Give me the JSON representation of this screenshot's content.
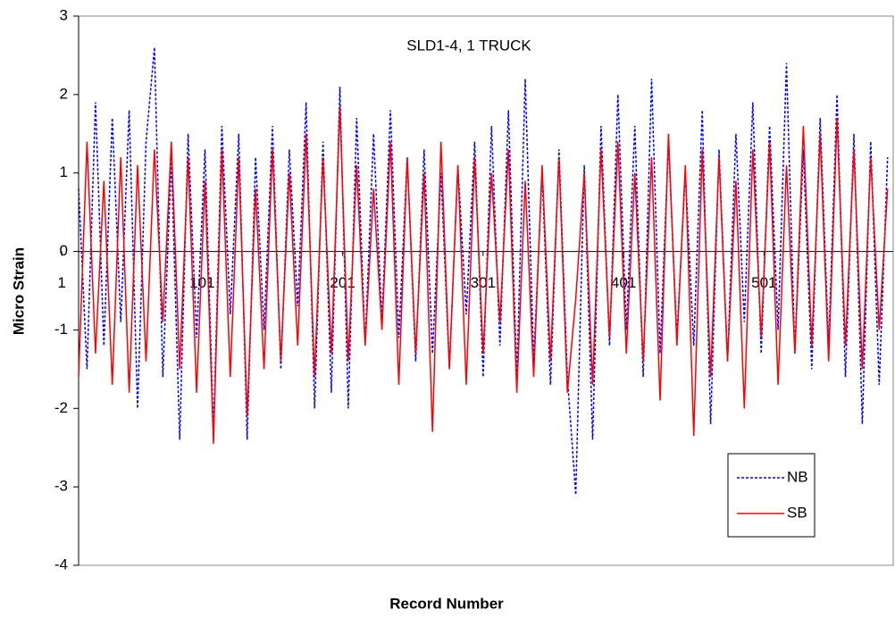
{
  "chart_data": {
    "type": "line",
    "title": "SLD1-4, 1 TRUCK",
    "x_label": "Record Number",
    "y_label": "Micro Strain",
    "x": [
      13,
      19,
      25,
      31,
      37,
      43,
      49,
      55,
      61,
      67,
      73,
      79,
      85,
      91,
      97,
      103,
      109,
      115,
      121,
      127,
      133,
      139,
      145,
      151,
      157,
      163,
      169,
      175,
      181,
      187,
      193,
      199,
      205,
      211,
      217,
      223,
      229,
      235,
      241,
      247,
      253,
      259,
      265,
      271,
      277,
      283,
      289,
      295,
      301,
      307,
      313,
      319,
      325,
      331,
      337,
      343,
      349,
      355,
      361,
      367,
      373,
      379,
      385,
      391,
      397,
      403,
      409,
      415,
      421,
      427,
      433,
      439,
      445,
      451,
      457,
      463,
      469,
      475,
      481,
      487,
      493,
      499,
      505,
      511,
      517,
      523,
      529,
      535,
      541,
      547,
      553,
      559,
      565,
      571,
      577,
      583,
      589
    ],
    "series": [
      {
        "name": "NB",
        "color": "#0000ff",
        "dash": "3,2",
        "values": [
          0.8,
          -1.5,
          1.9,
          -1.2,
          1.7,
          -0.9,
          1.8,
          -2.0,
          1.4,
          2.6,
          -1.6,
          1.2,
          -2.4,
          1.5,
          -1.1,
          1.3,
          -2.3,
          1.6,
          -0.8,
          1.5,
          -2.4,
          1.2,
          -1.0,
          1.6,
          -1.5,
          1.3,
          -0.7,
          1.9,
          -2.0,
          1.4,
          -1.8,
          2.1,
          -2.0,
          1.7,
          -1.2,
          1.5,
          -0.9,
          1.8,
          -1.1,
          1.2,
          -1.4,
          1.3,
          -1.3,
          1.0,
          -1.5,
          1.1,
          -0.8,
          1.4,
          -1.6,
          1.6,
          -1.2,
          1.8,
          -1.6,
          2.2,
          -1.4,
          1.0,
          -1.7,
          1.3,
          -1.6,
          -3.1,
          1.1,
          -2.4,
          1.6,
          -1.2,
          2.0,
          -1.0,
          1.6,
          -1.6,
          2.2,
          -1.3,
          1.4,
          -1.1,
          1.0,
          -1.2,
          1.8,
          -2.2,
          1.3,
          -1.4,
          1.5,
          -0.9,
          1.9,
          -1.3,
          1.6,
          -1.0,
          2.4,
          -1.3,
          1.3,
          -1.5,
          1.7,
          -1.2,
          2.0,
          -1.6,
          1.5,
          -2.2,
          1.4,
          -1.7,
          1.2
        ]
      },
      {
        "name": "SB",
        "color": "#ff0000",
        "dash": "",
        "values": [
          -1.6,
          1.4,
          -1.3,
          0.9,
          -1.7,
          1.2,
          -1.8,
          1.1,
          -1.4,
          1.3,
          -0.9,
          1.4,
          -1.5,
          1.2,
          -1.8,
          0.9,
          -2.45,
          1.3,
          -1.6,
          1.2,
          -2.1,
          0.8,
          -1.5,
          1.3,
          -1.4,
          1.0,
          -1.2,
          1.5,
          -1.6,
          1.2,
          -1.3,
          1.85,
          -1.4,
          1.1,
          -1.2,
          0.8,
          -1.0,
          1.4,
          -1.7,
          1.2,
          -1.3,
          1.0,
          -2.3,
          1.4,
          -1.5,
          1.1,
          -1.7,
          1.2,
          -1.3,
          1.0,
          -0.9,
          1.3,
          -1.8,
          0.9,
          -1.6,
          1.1,
          -1.4,
          1.2,
          -1.8,
          -0.6,
          1.0,
          -1.7,
          1.3,
          -1.1,
          1.4,
          -1.3,
          1.0,
          -1.4,
          1.2,
          -1.9,
          1.5,
          -1.2,
          1.1,
          -2.35,
          1.3,
          -1.6,
          1.2,
          -1.4,
          0.9,
          -2.0,
          1.3,
          -1.1,
          1.4,
          -1.7,
          1.1,
          -1.3,
          1.6,
          -1.2,
          1.5,
          -1.4,
          1.7,
          -1.2,
          1.3,
          -1.5,
          1.2,
          -1.0,
          0.8
        ]
      }
    ],
    "xlim": [
      13,
      593
    ],
    "xticks": [
      1,
      101,
      201,
      301,
      401,
      501
    ],
    "ylim": [
      -4,
      3
    ],
    "yticks": [
      -4,
      -3,
      -2,
      -1,
      0,
      1,
      2,
      3
    ],
    "legend": "lower right"
  }
}
